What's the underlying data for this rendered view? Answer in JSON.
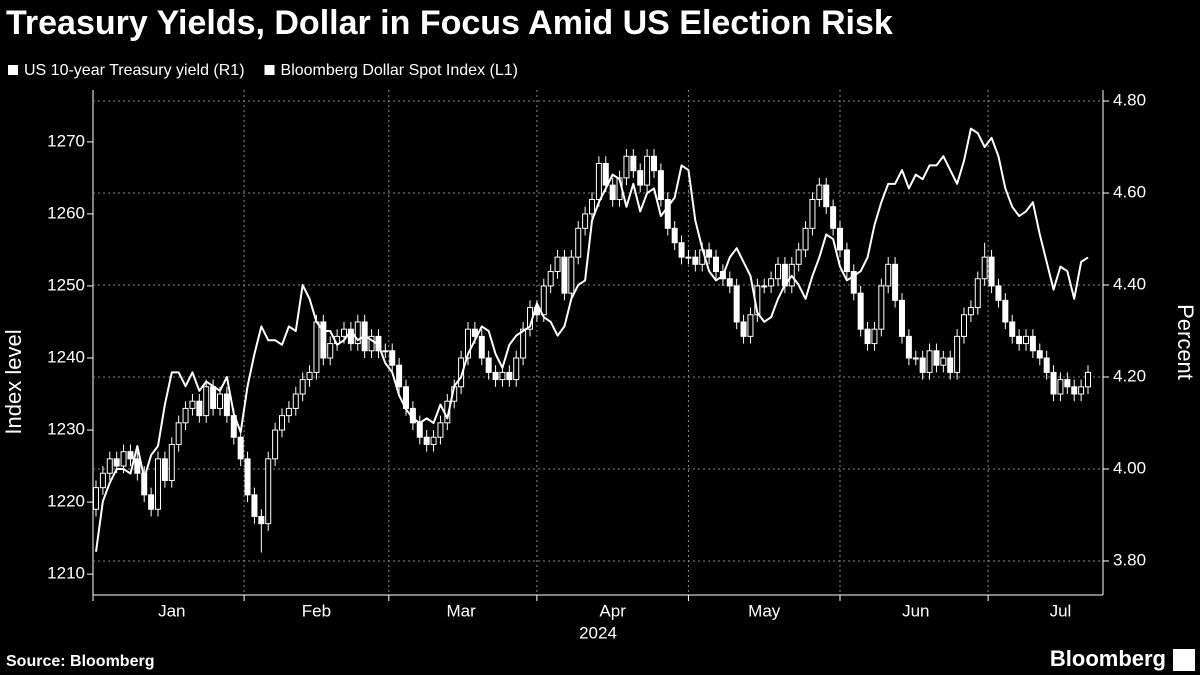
{
  "chart_data": {
    "type": "candlestick-line",
    "title": "Treasury Yields, Dollar in Focus Amid US Election Risk",
    "ylabel": "Index level",
    "y2label": "Percent",
    "xlabel": "2024",
    "source": "Source: Bloomberg",
    "brand": "Bloomberg",
    "categories": [
      null,
      null,
      null,
      null,
      null,
      null,
      null,
      null,
      null,
      null,
      null,
      "Jan",
      null,
      null,
      null,
      null,
      null,
      null,
      null,
      null,
      null,
      null,
      null,
      null,
      null,
      null,
      null,
      null,
      null,
      null,
      null,
      null,
      "Feb",
      null,
      null,
      null,
      null,
      null,
      null,
      null,
      null,
      null,
      null,
      null,
      null,
      null,
      null,
      null,
      null,
      null,
      null,
      null,
      null,
      "Mar",
      null,
      null,
      null,
      null,
      null,
      null,
      null,
      null,
      null,
      null,
      null,
      null,
      null,
      null,
      null,
      null,
      null,
      null,
      null,
      null,
      null,
      "Apr",
      null,
      null,
      null,
      null,
      null,
      null,
      null,
      null,
      null,
      null,
      null,
      null,
      null,
      null,
      null,
      null,
      null,
      null,
      null,
      null,
      null,
      "May",
      null,
      null,
      null,
      null,
      null,
      null,
      null,
      null,
      null,
      null,
      null,
      null,
      null,
      null,
      null,
      null,
      null,
      null,
      null,
      null,
      null,
      "Jun",
      null,
      null,
      null,
      null,
      null,
      null,
      null,
      null,
      null,
      null,
      null,
      null,
      null,
      null,
      null,
      null,
      null,
      null,
      null,
      null,
      "Jul",
      null,
      null,
      null,
      null
    ],
    "series": [
      {
        "name": "US 10-year Treasury yield (R1)",
        "type": "line",
        "axis": "y2",
        "color": "#ffffff",
        "values": [
          3.82,
          3.93,
          3.97,
          4.0,
          4.0,
          3.99,
          4.05,
          3.98,
          4.03,
          4.05,
          4.14,
          4.21,
          4.21,
          4.18,
          4.21,
          4.17,
          4.19,
          4.18,
          4.17,
          4.2,
          4.12,
          4.08,
          4.18,
          4.25,
          4.31,
          4.28,
          4.28,
          4.27,
          4.31,
          4.3,
          4.4,
          4.37,
          4.32,
          4.3,
          4.3,
          4.27,
          4.28,
          4.3,
          4.28,
          4.29,
          4.28,
          4.27,
          4.23,
          4.21,
          4.16,
          4.13,
          4.11,
          4.1,
          4.11,
          4.1,
          4.14,
          4.11,
          4.18,
          4.2,
          4.25,
          4.28,
          4.31,
          4.3,
          4.25,
          4.22,
          4.27,
          4.29,
          4.3,
          4.31,
          4.36,
          4.33,
          4.32,
          4.29,
          4.31,
          4.37,
          4.4,
          4.41,
          4.54,
          4.58,
          4.61,
          4.64,
          4.63,
          4.57,
          4.62,
          4.56,
          4.6,
          4.61,
          4.55,
          4.57,
          4.59,
          4.66,
          4.65,
          4.54,
          4.48,
          4.43,
          4.41,
          4.42,
          4.46,
          4.48,
          4.45,
          4.42,
          4.34,
          4.32,
          4.33,
          4.37,
          4.4,
          4.42,
          4.4,
          4.37,
          4.42,
          4.46,
          4.51,
          4.5,
          4.44,
          4.41,
          4.42,
          4.43,
          4.46,
          4.53,
          4.58,
          4.62,
          4.62,
          4.65,
          4.61,
          4.64,
          4.63,
          4.66,
          4.66,
          4.68,
          4.65,
          4.62,
          4.67,
          4.74,
          4.73,
          4.7,
          4.72,
          4.68,
          4.61,
          4.57,
          4.55,
          4.56,
          4.58,
          4.51,
          4.45,
          4.39,
          4.44,
          4.43,
          4.37,
          4.45,
          4.46
        ]
      },
      {
        "name": "Bloomberg Dollar Spot Index (L1)",
        "type": "candlestick",
        "color": "#ffffff",
        "open": [
          1219,
          1222,
          1224,
          1226,
          1225,
          1227,
          1226,
          1224,
          1221,
          1219,
          1226,
          1223,
          1228,
          1231,
          1233,
          1234,
          1232,
          1236,
          1233,
          1235,
          1232,
          1229,
          1226,
          1221,
          1218,
          1217,
          1226,
          1230,
          1232,
          1233,
          1235,
          1237,
          1238,
          1245,
          1240,
          1242,
          1243,
          1244,
          1242,
          1245,
          1241,
          1243,
          1241,
          1241,
          1239,
          1236,
          1233,
          1231,
          1229,
          1228,
          1229,
          1231,
          1234,
          1236,
          1240,
          1244,
          1243,
          1240,
          1238,
          1237,
          1238,
          1237,
          1240,
          1244,
          1247,
          1246,
          1250,
          1252,
          1254,
          1249,
          1254,
          1258,
          1260,
          1262,
          1267,
          1264,
          1262,
          1265,
          1268,
          1266,
          1264,
          1268,
          1266,
          1262,
          1258,
          1256,
          1254,
          1254,
          1253,
          1255,
          1254,
          1252,
          1251,
          1250,
          1245,
          1243,
          1246,
          1250,
          1250,
          1251,
          1253,
          1250,
          1253,
          1255,
          1258,
          1262,
          1264,
          1261,
          1258,
          1255,
          1252,
          1249,
          1244,
          1242,
          1244,
          1250,
          1253,
          1248,
          1243,
          1240,
          1240,
          1238,
          1241,
          1239,
          1240,
          1238,
          1243,
          1246,
          1247,
          1251,
          1254,
          1250,
          1248,
          1245,
          1243,
          1242,
          1243,
          1241,
          1240,
          1238,
          1235,
          1237,
          1236,
          1235,
          1236
        ],
        "high": [
          1223,
          1225,
          1227,
          1227,
          1228,
          1228,
          1227,
          1225,
          1222,
          1227,
          1227,
          1229,
          1232,
          1234,
          1235,
          1235,
          1237,
          1237,
          1236,
          1236,
          1233,
          1230,
          1227,
          1222,
          1219,
          1227,
          1231,
          1233,
          1234,
          1236,
          1238,
          1239,
          1246,
          1246,
          1243,
          1244,
          1245,
          1245,
          1246,
          1246,
          1244,
          1244,
          1242,
          1242,
          1240,
          1237,
          1234,
          1232,
          1230,
          1230,
          1232,
          1235,
          1237,
          1241,
          1245,
          1245,
          1244,
          1241,
          1239,
          1239,
          1239,
          1241,
          1245,
          1248,
          1248,
          1251,
          1253,
          1255,
          1255,
          1255,
          1259,
          1261,
          1263,
          1268,
          1268,
          1265,
          1266,
          1269,
          1269,
          1267,
          1269,
          1269,
          1267,
          1263,
          1259,
          1257,
          1255,
          1255,
          1256,
          1256,
          1255,
          1253,
          1252,
          1251,
          1246,
          1247,
          1251,
          1251,
          1252,
          1254,
          1254,
          1254,
          1256,
          1259,
          1263,
          1265,
          1265,
          1262,
          1259,
          1256,
          1253,
          1250,
          1245,
          1245,
          1251,
          1254,
          1254,
          1249,
          1244,
          1241,
          1241,
          1242,
          1242,
          1241,
          1241,
          1244,
          1247,
          1248,
          1252,
          1256,
          1255,
          1251,
          1249,
          1246,
          1244,
          1244,
          1244,
          1242,
          1241,
          1239,
          1238,
          1238,
          1237,
          1237,
          1239
        ],
        "low": [
          1218,
          1221,
          1223,
          1224,
          1224,
          1225,
          1223,
          1220,
          1218,
          1218,
          1222,
          1222,
          1227,
          1230,
          1232,
          1231,
          1231,
          1232,
          1232,
          1231,
          1228,
          1225,
          1220,
          1217,
          1213,
          1216,
          1225,
          1229,
          1231,
          1232,
          1234,
          1236,
          1237,
          1239,
          1239,
          1241,
          1242,
          1241,
          1241,
          1240,
          1240,
          1240,
          1240,
          1238,
          1235,
          1232,
          1230,
          1228,
          1227,
          1227,
          1228,
          1230,
          1233,
          1235,
          1239,
          1242,
          1239,
          1237,
          1236,
          1236,
          1236,
          1236,
          1239,
          1243,
          1245,
          1245,
          1249,
          1251,
          1248,
          1248,
          1253,
          1257,
          1259,
          1261,
          1263,
          1261,
          1261,
          1264,
          1265,
          1263,
          1263,
          1265,
          1261,
          1257,
          1255,
          1253,
          1253,
          1252,
          1252,
          1253,
          1251,
          1250,
          1249,
          1244,
          1242,
          1242,
          1245,
          1249,
          1249,
          1250,
          1249,
          1249,
          1252,
          1254,
          1257,
          1261,
          1260,
          1257,
          1254,
          1251,
          1248,
          1243,
          1241,
          1241,
          1243,
          1249,
          1247,
          1242,
          1239,
          1239,
          1237,
          1237,
          1238,
          1238,
          1237,
          1237,
          1242,
          1245,
          1246,
          1250,
          1249,
          1247,
          1244,
          1242,
          1241,
          1241,
          1240,
          1239,
          1237,
          1234,
          1234,
          1235,
          1234,
          1234,
          1235
        ],
        "close": [
          1222,
          1224,
          1226,
          1225,
          1227,
          1226,
          1224,
          1221,
          1219,
          1226,
          1223,
          1228,
          1231,
          1233,
          1234,
          1232,
          1236,
          1233,
          1235,
          1232,
          1229,
          1226,
          1221,
          1218,
          1217,
          1226,
          1230,
          1232,
          1233,
          1235,
          1237,
          1238,
          1245,
          1240,
          1242,
          1243,
          1244,
          1242,
          1245,
          1241,
          1243,
          1241,
          1241,
          1239,
          1236,
          1233,
          1231,
          1229,
          1228,
          1229,
          1231,
          1234,
          1236,
          1240,
          1244,
          1243,
          1240,
          1238,
          1237,
          1238,
          1237,
          1240,
          1244,
          1247,
          1246,
          1250,
          1252,
          1254,
          1249,
          1254,
          1258,
          1260,
          1262,
          1267,
          1264,
          1262,
          1265,
          1268,
          1266,
          1264,
          1268,
          1266,
          1262,
          1258,
          1256,
          1254,
          1254,
          1253,
          1255,
          1254,
          1252,
          1251,
          1250,
          1245,
          1243,
          1246,
          1250,
          1250,
          1251,
          1253,
          1250,
          1253,
          1255,
          1258,
          1262,
          1264,
          1261,
          1258,
          1255,
          1252,
          1249,
          1244,
          1242,
          1244,
          1250,
          1253,
          1248,
          1243,
          1240,
          1240,
          1238,
          1241,
          1239,
          1240,
          1238,
          1243,
          1246,
          1247,
          1251,
          1254,
          1250,
          1248,
          1245,
          1243,
          1242,
          1243,
          1241,
          1240,
          1238,
          1235,
          1237,
          1236,
          1235,
          1236,
          1238
        ]
      }
    ],
    "ylim": [
      1207.1,
      1277.2
    ],
    "yticks": [
      1210,
      1220,
      1230,
      1240,
      1250,
      1260,
      1270
    ],
    "y2lim": [
      3.726,
      4.824
    ],
    "y2ticks": [
      {
        "value": 3.8,
        "label": "3.80"
      },
      {
        "value": 4.0,
        "label": "4.00"
      },
      {
        "value": 4.2,
        "label": "4.20"
      },
      {
        "value": 4.4,
        "label": "4.40"
      },
      {
        "value": 4.6,
        "label": "4.60"
      },
      {
        "value": 4.8,
        "label": "4.80"
      }
    ],
    "grid": "y2",
    "legend": "top-left"
  }
}
